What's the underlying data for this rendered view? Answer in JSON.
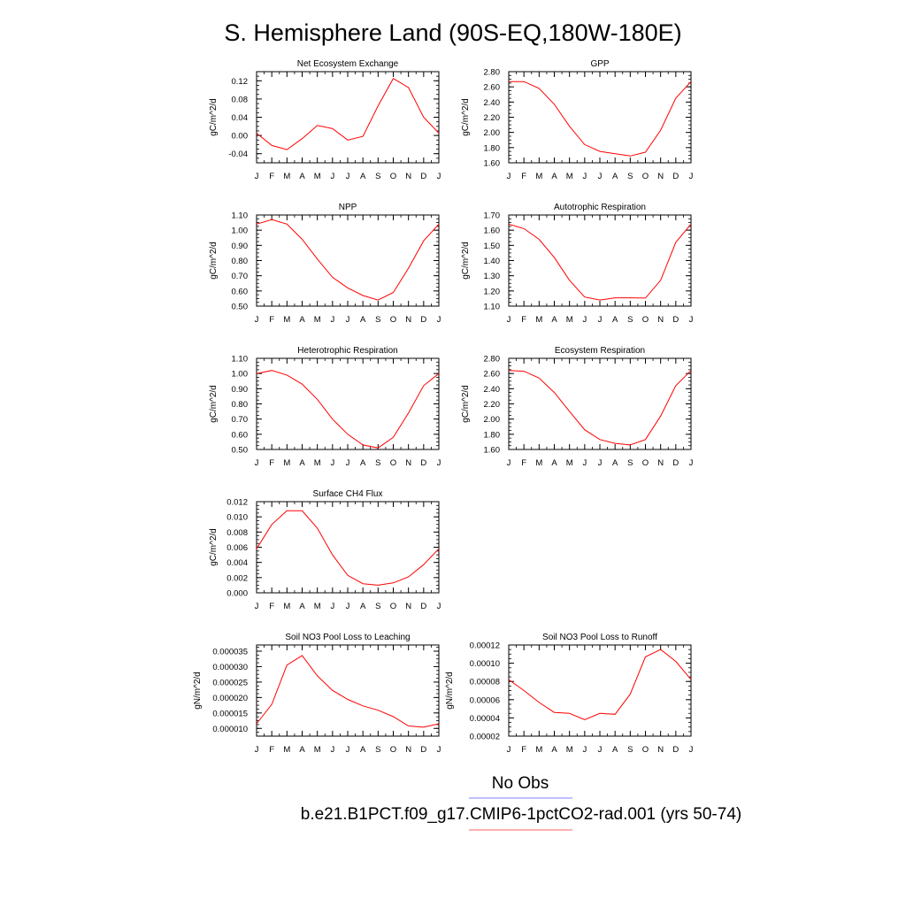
{
  "title": "S. Hemisphere Land (90S-EQ,180W-180E)",
  "legend": {
    "entries": [
      {
        "label": "No Obs",
        "color": "#8080ff"
      },
      {
        "label": "b.e21.B1PCT.f09_g17.CMIP6-1pctCO2-rad.001 (yrs 50-74)",
        "color": "#ff6060"
      }
    ]
  },
  "line_color": "#ff0000",
  "months": [
    "J",
    "F",
    "M",
    "A",
    "M",
    "J",
    "J",
    "A",
    "S",
    "O",
    "N",
    "D",
    "J"
  ],
  "chart_data": [
    {
      "type": "line",
      "title": "Net Ecosystem Exchange",
      "ylabel": "gC/m^2/d",
      "ylim": [
        -0.06,
        0.14
      ],
      "yticks": [
        -0.04,
        0.0,
        0.04,
        0.08,
        0.12
      ],
      "yticklabels": [
        "-0.04",
        "0.00",
        "0.04",
        "0.08",
        "0.12"
      ],
      "minor_step": 0.01,
      "values": [
        0.005,
        -0.022,
        -0.031,
        -0.007,
        0.022,
        0.015,
        -0.01,
        -0.002,
        0.065,
        0.125,
        0.105,
        0.04,
        0.005
      ]
    },
    {
      "type": "line",
      "title": "GPP",
      "ylabel": "gC/m^2/d",
      "ylim": [
        1.6,
        2.8
      ],
      "yticks": [
        1.6,
        1.8,
        2.0,
        2.2,
        2.4,
        2.6,
        2.8
      ],
      "yticklabels": [
        "1.60",
        "1.80",
        "2.00",
        "2.20",
        "2.40",
        "2.60",
        "2.80"
      ],
      "minor_step": 0.05,
      "values": [
        2.67,
        2.67,
        2.58,
        2.37,
        2.08,
        1.84,
        1.75,
        1.72,
        1.69,
        1.74,
        2.03,
        2.45,
        2.67
      ]
    },
    {
      "type": "line",
      "title": "NPP",
      "ylabel": "gC/m^2/d",
      "ylim": [
        0.5,
        1.1
      ],
      "yticks": [
        0.5,
        0.6,
        0.7,
        0.8,
        0.9,
        1.0,
        1.1
      ],
      "yticklabels": [
        "0.50",
        "0.60",
        "0.70",
        "0.80",
        "0.90",
        "1.00",
        "1.10"
      ],
      "minor_step": 0.025,
      "values": [
        1.04,
        1.07,
        1.04,
        0.94,
        0.81,
        0.69,
        0.62,
        0.57,
        0.54,
        0.59,
        0.75,
        0.93,
        1.04
      ]
    },
    {
      "type": "line",
      "title": "Autotrophic Respiration",
      "ylabel": "gC/m^2/d",
      "ylim": [
        1.1,
        1.7
      ],
      "yticks": [
        1.1,
        1.2,
        1.3,
        1.4,
        1.5,
        1.6,
        1.7
      ],
      "yticklabels": [
        "1.10",
        "1.20",
        "1.30",
        "1.40",
        "1.50",
        "1.60",
        "1.70"
      ],
      "minor_step": 0.025,
      "values": [
        1.64,
        1.61,
        1.54,
        1.42,
        1.27,
        1.16,
        1.14,
        1.155,
        1.155,
        1.153,
        1.27,
        1.52,
        1.64
      ]
    },
    {
      "type": "line",
      "title": "Heterotrophic Respiration",
      "ylabel": "gC/m^2/d",
      "ylim": [
        0.5,
        1.1
      ],
      "yticks": [
        0.5,
        0.6,
        0.7,
        0.8,
        0.9,
        1.0,
        1.1
      ],
      "yticklabels": [
        "0.50",
        "0.60",
        "0.70",
        "0.80",
        "0.90",
        "1.00",
        "1.10"
      ],
      "minor_step": 0.025,
      "values": [
        1.0,
        1.02,
        0.99,
        0.93,
        0.83,
        0.7,
        0.6,
        0.53,
        0.51,
        0.58,
        0.74,
        0.92,
        1.0
      ]
    },
    {
      "type": "line",
      "title": "Ecosystem Respiration",
      "ylabel": "gC/m^2/d",
      "ylim": [
        1.6,
        2.8
      ],
      "yticks": [
        1.6,
        1.8,
        2.0,
        2.2,
        2.4,
        2.6,
        2.8
      ],
      "yticklabels": [
        "1.60",
        "1.80",
        "2.00",
        "2.20",
        "2.40",
        "2.60",
        "2.80"
      ],
      "minor_step": 0.05,
      "values": [
        2.64,
        2.63,
        2.54,
        2.35,
        2.1,
        1.86,
        1.73,
        1.68,
        1.66,
        1.73,
        2.04,
        2.44,
        2.64
      ]
    },
    {
      "type": "line",
      "title": "Surface CH4 Flux",
      "ylabel": "gC/m^2/d",
      "ylim": [
        0.0,
        0.012
      ],
      "yticks": [
        0.0,
        0.002,
        0.004,
        0.006,
        0.008,
        0.01,
        0.012
      ],
      "yticklabels": [
        "0.000",
        "0.002",
        "0.004",
        "0.006",
        "0.008",
        "0.010",
        "0.012"
      ],
      "minor_step": 0.0005,
      "values": [
        0.0058,
        0.009,
        0.0108,
        0.0108,
        0.0085,
        0.005,
        0.0023,
        0.0012,
        0.001,
        0.0013,
        0.0021,
        0.0037,
        0.0058
      ]
    },
    {
      "type": "line",
      "title": "Soil NO3 Pool Loss to Leaching",
      "ylabel": "gN/m^2/d",
      "ylim": [
        7.5e-06,
        3.7e-05
      ],
      "yticks": [
        1e-05,
        1.5e-05,
        2e-05,
        2.5e-05,
        3e-05,
        3.5e-05
      ],
      "yticklabels": [
        "0.000010",
        "0.000015",
        "0.000020",
        "0.000025",
        "0.000030",
        "0.000035"
      ],
      "minor_step": 1.25e-06,
      "values": [
        1.15e-05,
        1.78e-05,
        3.05e-05,
        3.36e-05,
        2.7e-05,
        2.23e-05,
        1.94e-05,
        1.73e-05,
        1.59e-05,
        1.38e-05,
        1.08e-05,
        1.04e-05,
        1.15e-05
      ]
    },
    {
      "type": "line",
      "title": "Soil NO3 Pool Loss to Runoff",
      "ylabel": "gN/m^2/d",
      "ylim": [
        2e-05,
        0.00012
      ],
      "yticks": [
        2e-05,
        4e-05,
        6e-05,
        8e-05,
        0.0001,
        0.00012
      ],
      "yticklabels": [
        "0.00002",
        "0.00004",
        "0.00006",
        "0.00008",
        "0.00010",
        "0.00012"
      ],
      "minor_step": 5e-06,
      "values": [
        8.2e-05,
        7e-05,
        5.7e-05,
        4.6e-05,
        4.5e-05,
        3.8e-05,
        4.5e-05,
        4.4e-05,
        6.6e-05,
        0.000107,
        0.000115,
        0.000102,
        8.2e-05
      ]
    }
  ]
}
